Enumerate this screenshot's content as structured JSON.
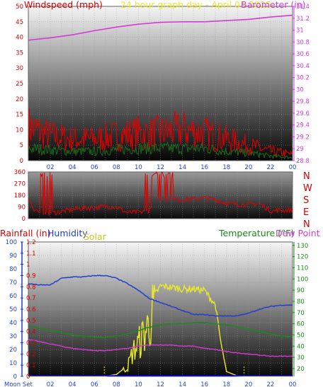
{
  "colors": {
    "wind": "#e00000",
    "wind_avg": "#1b6b1b",
    "wind_dir": "#e00000",
    "barometer": "#d23cd2",
    "temperature": "#1a8a1a",
    "dew_point": "#d23cd2",
    "humidity": "#1f3fd2",
    "solar": "#e8e82a",
    "rainfall": "#0000e0",
    "title": "#e8e82a",
    "background_top": "#ffffff",
    "background_bottom": "#000000"
  },
  "chart_data": [
    {
      "type": "line",
      "panel": "wind-baro",
      "title": "24 hour graph day - April 01 2025",
      "y_left_label": "Windspeed (mph)",
      "y_right_label": "Barometer (in)",
      "ylim_left": [
        0,
        50
      ],
      "ylim_right": [
        28.8,
        31.4
      ],
      "y_left_ticks": [
        "0",
        "5",
        "10",
        "15",
        "20",
        "25",
        "30",
        "35",
        "40",
        "45",
        "50"
      ],
      "y_right_ticks": [
        "28.8",
        "29",
        "29.2",
        "29.4",
        "29.6",
        "29.8",
        "30",
        "30.2",
        "30.4",
        "30.6",
        "30.8",
        "31",
        "31.2",
        "31.4"
      ],
      "x_ticks": [
        "02",
        "04",
        "06",
        "08",
        "10",
        "12",
        "14",
        "16",
        "18",
        "20",
        "22",
        "00"
      ],
      "x_hours": [
        0,
        24
      ],
      "grid": true,
      "series": [
        {
          "key": "barometer",
          "x": [
            0,
            2,
            4,
            6,
            8,
            10,
            12,
            14,
            16,
            18,
            20,
            22,
            24
          ],
          "values": [
            30.83,
            30.87,
            30.92,
            30.99,
            31.05,
            31.1,
            31.13,
            31.14,
            31.14,
            31.16,
            31.18,
            31.22,
            31.25
          ]
        },
        {
          "key": "wind_gust",
          "x": [
            0,
            2,
            4,
            6,
            8,
            10,
            12,
            14,
            16,
            18,
            20,
            22,
            24
          ],
          "values": [
            11,
            8,
            7,
            7,
            8,
            9,
            9,
            10,
            9,
            7,
            5,
            3,
            2
          ]
        },
        {
          "key": "wind_avg",
          "x": [
            0,
            2,
            4,
            6,
            8,
            10,
            12,
            14,
            16,
            18,
            20,
            22,
            24
          ],
          "values": [
            4,
            3.5,
            3,
            3,
            3.5,
            4,
            4,
            4,
            4,
            3,
            2.5,
            1.5,
            1
          ]
        }
      ]
    },
    {
      "type": "line",
      "panel": "wind-direction",
      "y_ticks": [
        "0",
        "90",
        "180",
        "270",
        "360"
      ],
      "ylim": [
        0,
        360
      ],
      "compass": [
        "N",
        "W",
        "S",
        "E",
        "N"
      ],
      "series": [
        {
          "key": "wind_direction",
          "x": [
            0,
            0.5,
            1,
            2,
            3,
            4,
            5,
            6,
            7,
            8,
            9,
            10,
            11,
            12,
            13,
            14,
            15,
            16,
            17,
            18,
            19,
            20,
            21,
            22,
            23,
            24
          ],
          "values": [
            170,
            60,
            40,
            40,
            55,
            70,
            80,
            85,
            95,
            90,
            45,
            50,
            60,
            130,
            140,
            150,
            150,
            160,
            145,
            120,
            110,
            110,
            115,
            60,
            65,
            65
          ]
        }
      ]
    },
    {
      "type": "line",
      "panel": "rain-hum-temp",
      "labels": {
        "rainfall": "Rainfall (in)",
        "humidity": "Humidity",
        "solar": "Solar",
        "temperature": "Temperature (°F)",
        "dew_point": "Dew Point (°F)"
      },
      "y_rain_ticks": [
        "0",
        "0.1",
        "0.2",
        "0.3",
        "0.4",
        "0.5",
        "0.6",
        "0.7",
        "0.8",
        "0.9",
        "1",
        "1.1",
        "1.2"
      ],
      "ylim_rain": [
        0,
        1.2
      ],
      "y_hum_ticks": [
        "0",
        "10",
        "20",
        "30",
        "40",
        "50",
        "60",
        "70",
        "80",
        "90",
        "100"
      ],
      "ylim_hum": [
        0,
        100
      ],
      "y_temp_ticks": [
        "20",
        "30",
        "40",
        "50",
        "60",
        "70",
        "80",
        "90",
        "100",
        "110",
        "120",
        "130"
      ],
      "ylim_temp": [
        13,
        133
      ],
      "x_ticks": [
        "Moon Set",
        "02",
        "04",
        "06",
        "08",
        "10",
        "12",
        "14",
        "16",
        "18",
        "20",
        "22",
        "00"
      ],
      "grid": true,
      "series": [
        {
          "key": "humidity",
          "x": [
            0,
            1,
            2,
            3,
            4,
            5,
            6,
            7,
            8,
            9,
            10,
            11,
            12,
            13,
            14,
            15,
            16,
            17,
            18,
            19,
            20,
            21,
            22,
            23,
            24
          ],
          "values": [
            69,
            68,
            68,
            73,
            74,
            74,
            75,
            75,
            73,
            69,
            64,
            58,
            55,
            52,
            49,
            46,
            46,
            45,
            45,
            45,
            47,
            50,
            52,
            53,
            53
          ]
        },
        {
          "key": "temperature",
          "x": [
            0,
            1,
            2,
            3,
            4,
            5,
            6,
            7,
            8,
            9,
            10,
            11,
            12,
            13,
            14,
            15,
            16,
            17,
            18,
            19,
            20,
            21,
            22,
            23,
            24
          ],
          "values": [
            58,
            56,
            54,
            52,
            50,
            49,
            48,
            48,
            49,
            51,
            54,
            57,
            59,
            60,
            60,
            61,
            61,
            60,
            59,
            57,
            55,
            53,
            51,
            49,
            48
          ]
        },
        {
          "key": "dew_point",
          "x": [
            0,
            1,
            2,
            3,
            4,
            5,
            6,
            7,
            8,
            9,
            10,
            11,
            12,
            13,
            14,
            15,
            16,
            17,
            18,
            19,
            20,
            21,
            22,
            23,
            24
          ],
          "values": [
            46,
            44,
            42,
            40,
            38,
            37,
            36,
            36,
            37,
            38,
            40,
            41,
            41,
            41,
            40,
            40,
            38,
            37,
            35,
            34,
            33,
            32,
            31,
            31,
            31
          ]
        },
        {
          "key": "solar",
          "x": [
            0,
            6.9,
            7.2,
            8,
            9,
            9.5,
            10,
            10.5,
            11,
            11.5,
            12,
            13,
            14,
            15,
            16,
            17,
            17.5,
            18,
            19,
            20,
            24
          ],
          "values": [
            0,
            0,
            2,
            8,
            45,
            120,
            160,
            205,
            260,
            345,
            380,
            375,
            368,
            368,
            362,
            300,
            140,
            20,
            2,
            0,
            0
          ]
        },
        {
          "key": "rainfall",
          "x": [
            0,
            24
          ],
          "values": [
            0,
            0
          ]
        }
      ]
    }
  ]
}
